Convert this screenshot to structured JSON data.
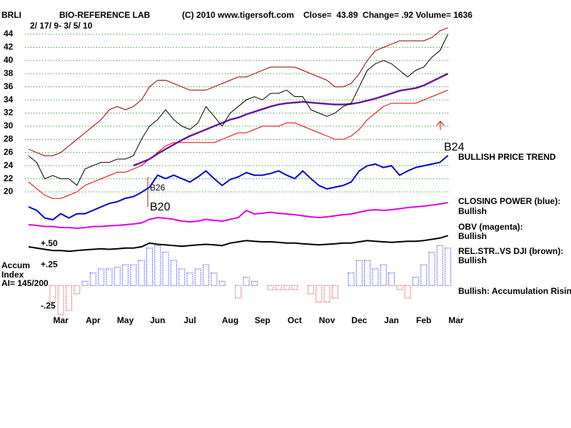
{
  "chart_data": [
    {
      "type": "line",
      "ticker": "BRLI",
      "title": "BIO-REFERENCE LAB",
      "copyright": "(C) 2010 www.tigersoft.com",
      "stats": "Close=  43.89  Change= .92 Volume= 1636",
      "subtitle": "2/ 17/ 9- 3/ 5/ 10",
      "ylim": [
        20,
        44
      ],
      "yticks": [
        20,
        22,
        24,
        26,
        28,
        30,
        32,
        34,
        36,
        38,
        40,
        42,
        44
      ],
      "grid": true,
      "annotations": [
        "B24",
        "BULLISH PRICE TREND",
        "B26",
        "B20"
      ],
      "series": [
        {
          "color": "#8b0000",
          "values": [
            26.5,
            26,
            25.5,
            25.5,
            26,
            27,
            28,
            29,
            30,
            31,
            32.5,
            33,
            32.5,
            33,
            34,
            36,
            37,
            37,
            36.5,
            36,
            35.5,
            35.5,
            35.5,
            36,
            36.5,
            37,
            37.5,
            37.5,
            38,
            38.5,
            39,
            39,
            39,
            39,
            38.5,
            38,
            37.5,
            37,
            36,
            36,
            36.5,
            38,
            40,
            41.5,
            42,
            42.5,
            43,
            43,
            43,
            43,
            43.5,
            44.5,
            45,
            null
          ]
        },
        {
          "color": "#e00000",
          "values": [
            21.5,
            20.5,
            19.5,
            19,
            19,
            19.5,
            20,
            21,
            21.5,
            22,
            22.5,
            23,
            23,
            23.5,
            24,
            25,
            26,
            27,
            27.5,
            27.5,
            27.5,
            27.5,
            27.5,
            27.5,
            28,
            28.5,
            29,
            29,
            29.5,
            30,
            30,
            30,
            30.5,
            30.5,
            30,
            29.5,
            29,
            28.5,
            28,
            28,
            28.5,
            29.5,
            31,
            32,
            33,
            33.5,
            33.5,
            33.5,
            33.5,
            34,
            34.5,
            35,
            35.5,
            null
          ]
        },
        {
          "color": "#6a1b9a",
          "values": [
            null,
            null,
            null,
            null,
            null,
            null,
            null,
            null,
            null,
            null,
            null,
            null,
            null,
            24,
            24.5,
            25,
            25.8,
            26.5,
            27.2,
            27.9,
            28.5,
            29,
            29.5,
            30,
            30.5,
            31,
            31.3,
            31.8,
            32.2,
            32.6,
            33,
            33.3,
            33.5,
            33.6,
            33.7,
            33.6,
            33.5,
            33.4,
            33.3,
            33.3,
            33.4,
            33.6,
            33.9,
            34.2,
            34.6,
            35,
            35.4,
            35.6,
            35.8,
            36.2,
            36.8,
            37.4,
            38,
            null
          ]
        },
        {
          "color": "#000000",
          "values": [
            25.5,
            24.5,
            22,
            22.5,
            22,
            22,
            21,
            23.5,
            24,
            24.5,
            24.5,
            25,
            25,
            25.5,
            28,
            30,
            31,
            32.5,
            31,
            30,
            29.5,
            30.5,
            33,
            31.5,
            30,
            32,
            33,
            34,
            34.5,
            34,
            35,
            35,
            35.5,
            34.5,
            34.5,
            32.5,
            32,
            31.5,
            32,
            33,
            33.5,
            36,
            38.5,
            39.5,
            40,
            39.5,
            38.5,
            37.5,
            38.5,
            39,
            40.5,
            41.5,
            44,
            null
          ]
        }
      ]
    },
    {
      "type": "line",
      "series": [
        {
          "name": "CLOSING POWER (blue):",
          "verdict": "Bullish",
          "color": "#0000cc",
          "ylim": [
            0,
            100
          ],
          "values": [
            25,
            21,
            12,
            10,
            17,
            12,
            17,
            17,
            21,
            25,
            29,
            31,
            35,
            37,
            42,
            48,
            62,
            58,
            62,
            58,
            54,
            60,
            67,
            58,
            50,
            57,
            60,
            65,
            62,
            62,
            64,
            67,
            62,
            58,
            67,
            58,
            50,
            46,
            48,
            50,
            54,
            67,
            73,
            75,
            71,
            73,
            62,
            67,
            71,
            73,
            75,
            77,
            85,
            null
          ]
        },
        {
          "name": "OBV (magenta):",
          "verdict": "Bullish",
          "color": "#e000e0",
          "ylim": [
            0,
            100
          ],
          "values": [
            30,
            28,
            25,
            25,
            22,
            22,
            20,
            22,
            25,
            25,
            27,
            28,
            30,
            32,
            35,
            45,
            50,
            48,
            45,
            40,
            38,
            40,
            45,
            42,
            40,
            45,
            50,
            70,
            60,
            62,
            65,
            62,
            60,
            58,
            55,
            52,
            50,
            52,
            55,
            58,
            60,
            65,
            70,
            72,
            70,
            72,
            75,
            78,
            80,
            82,
            85,
            88,
            92,
            null
          ]
        },
        {
          "name": "REL.STR..VS DJI (brown):",
          "verdict": "Bullish",
          "color": "#000000",
          "ylim": [
            0,
            100
          ],
          "values": [
            40,
            35,
            30,
            25,
            25,
            22,
            25,
            28,
            30,
            32,
            30,
            32,
            35,
            35,
            40,
            55,
            50,
            48,
            45,
            42,
            45,
            48,
            50,
            48,
            45,
            55,
            60,
            65,
            62,
            60,
            60,
            58,
            55,
            55,
            52,
            50,
            48,
            50,
            52,
            55,
            55,
            60,
            65,
            62,
            60,
            58,
            60,
            62,
            62,
            65,
            70,
            75,
            85,
            null
          ]
        }
      ]
    },
    {
      "type": "bar",
      "label": [
        "Accum",
        "Index",
        "AI= 145/200"
      ],
      "note": "Bullish: Accumulation Rising",
      "ylim": [
        -0.35,
        0.5
      ],
      "yticks": [
        {
          "value": 0.5,
          "label": "+.50"
        },
        {
          "value": 0.25,
          "label": "+.25"
        },
        {
          "value": -0.25,
          "label": "-.25"
        }
      ],
      "colors": {
        "up": "#0000cc",
        "down": "#cc0000"
      },
      "categories": [
        null,
        null,
        null,
        null,
        "Mar",
        null,
        null,
        null,
        "Apr",
        null,
        null,
        null,
        "May",
        null,
        null,
        null,
        "Jun",
        null,
        null,
        null,
        "Jul",
        null,
        null,
        null,
        null,
        "Aug",
        null,
        null,
        null,
        "Sep",
        null,
        null,
        null,
        "Oct",
        null,
        null,
        null,
        "Nov",
        null,
        null,
        null,
        "Dec",
        null,
        null,
        null,
        "Jan",
        null,
        null,
        null,
        "Feb",
        null,
        null,
        null,
        "Mar"
      ],
      "values": [
        0,
        0,
        0,
        -0.2,
        -0.35,
        -0.3,
        -0.1,
        0.05,
        0.15,
        0.2,
        0.2,
        0.22,
        0.25,
        0.25,
        0.3,
        0.45,
        0.48,
        0.4,
        0.3,
        0.2,
        0.15,
        0.2,
        0.25,
        0.15,
        0.05,
        0,
        -0.15,
        0.1,
        0.05,
        0,
        -0.05,
        -0.05,
        -0.05,
        -0.05,
        0,
        -0.1,
        -0.2,
        -0.2,
        -0.15,
        0,
        0.15,
        0.3,
        0.3,
        0.2,
        0.25,
        0.15,
        -0.05,
        -0.15,
        0.1,
        0.25,
        0.4,
        0.48,
        0.45,
        null
      ]
    }
  ]
}
